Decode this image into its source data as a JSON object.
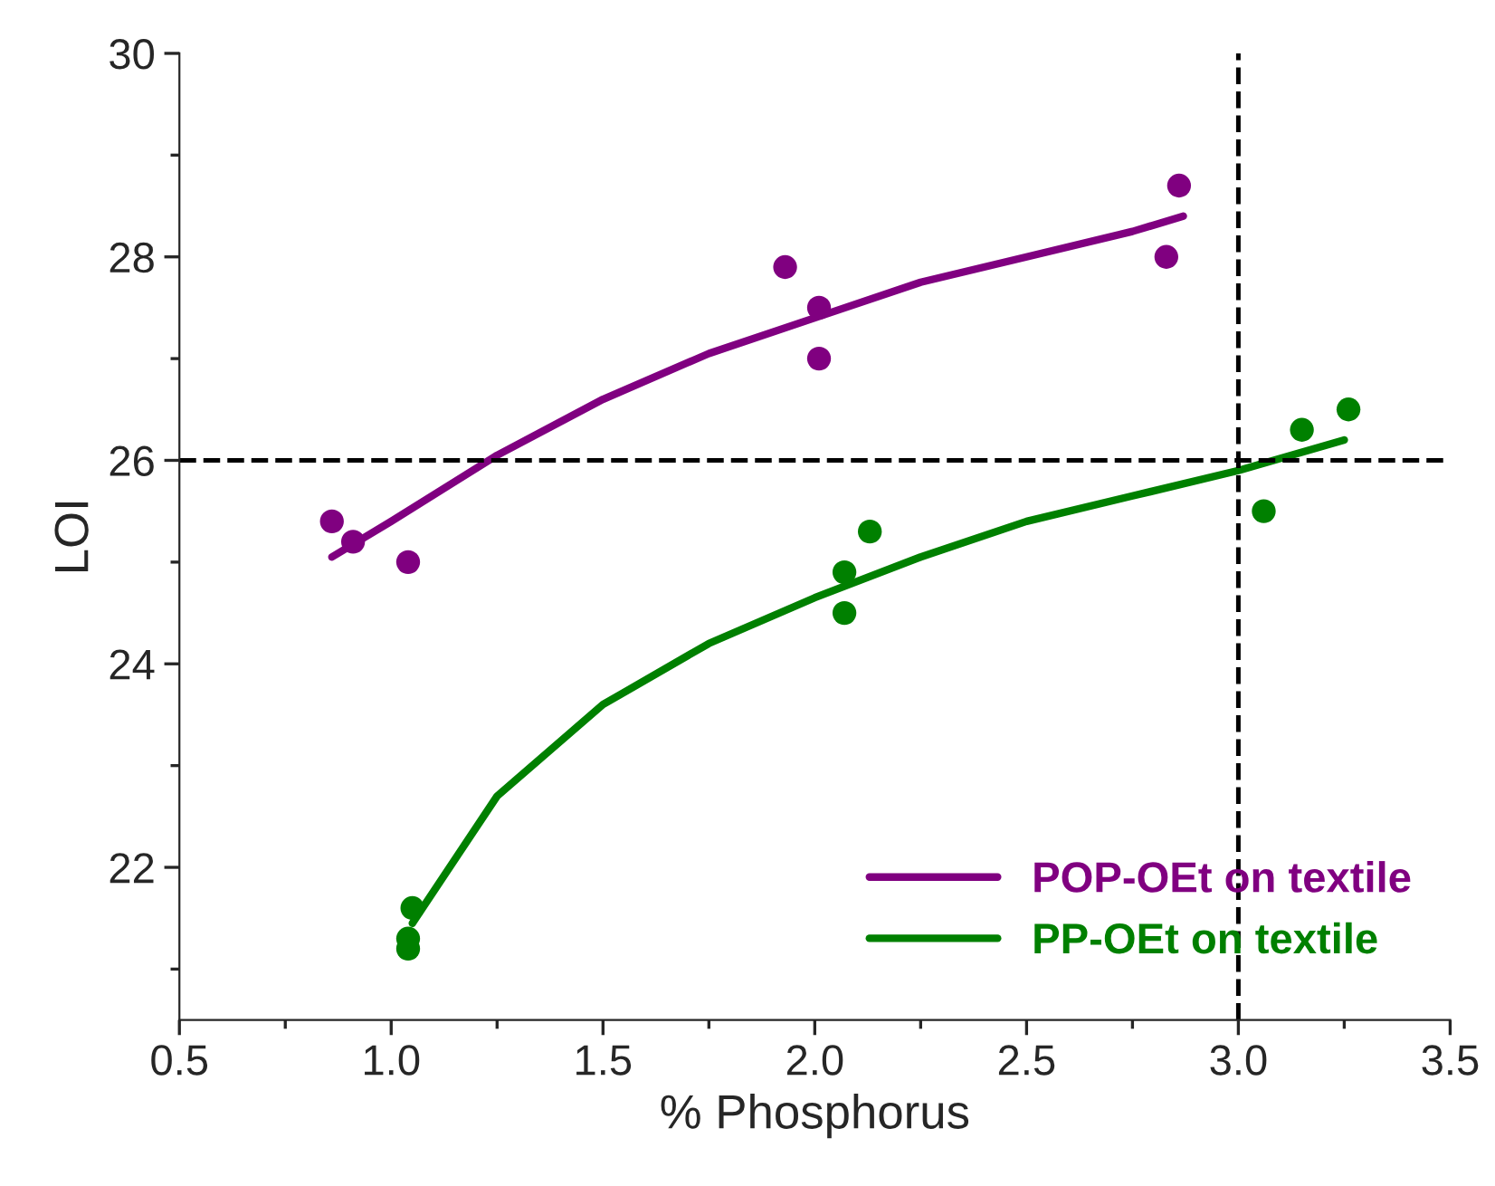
{
  "chart_data": {
    "type": "scatter",
    "xlabel": "% Phosphorus",
    "ylabel": "LOI",
    "xlim": [
      0.5,
      3.5
    ],
    "xticks": [
      0.5,
      {
        "value": 1,
        "label": "1.0"
      },
      1.5,
      {
        "value": 2,
        "label": "2.0"
      },
      2.5,
      {
        "value": 3,
        "label": "3.0"
      },
      3.5
    ],
    "ylim": [
      20.5,
      30
    ],
    "yticks": [
      22,
      24,
      26,
      28,
      30
    ],
    "grid": false,
    "legend": "bottom right",
    "series": [
      {
        "marker": "circle",
        "color": "#800080",
        "x": [
          0.86,
          0.91,
          1.04,
          1.93,
          2.01,
          2.01,
          2.86,
          2.83
        ],
        "values": [
          25.4,
          25.2,
          25.0,
          27.9,
          27.5,
          27.0,
          28.7,
          28.0
        ]
      },
      {
        "marker": "circle",
        "color": "#008000",
        "x": [
          1.05,
          1.04,
          1.04,
          2.07,
          2.13,
          2.07,
          3.06,
          3.15,
          3.26
        ],
        "values": [
          21.6,
          21.3,
          21.2,
          24.9,
          25.3,
          24.5,
          25.5,
          26.3,
          26.5
        ]
      },
      {
        "type": "line",
        "name": "POP-OEt on textile",
        "color": "#800080",
        "x": [
          0.86,
          1.0,
          1.25,
          1.5,
          1.75,
          2.0,
          2.25,
          2.5,
          2.75,
          2.87
        ],
        "values": [
          25.05,
          25.4,
          26.05,
          26.6,
          27.05,
          27.4,
          27.75,
          28.0,
          28.25,
          28.4
        ]
      },
      {
        "type": "line",
        "name": "PP-OEt on textile",
        "color": "#008000",
        "x": [
          1.05,
          1.25,
          1.5,
          1.75,
          2.0,
          2.25,
          2.5,
          2.75,
          3.0,
          3.25
        ],
        "values": [
          21.45,
          22.7,
          23.6,
          24.2,
          24.65,
          25.05,
          25.4,
          25.65,
          25.9,
          26.2
        ]
      }
    ],
    "ref_lines": [
      {
        "axis": "y",
        "value": 26,
        "line_style": "dashed",
        "color": "#000000"
      },
      {
        "axis": "x",
        "value": 3.0,
        "line_style": "dashed",
        "color": "#000000"
      }
    ]
  }
}
